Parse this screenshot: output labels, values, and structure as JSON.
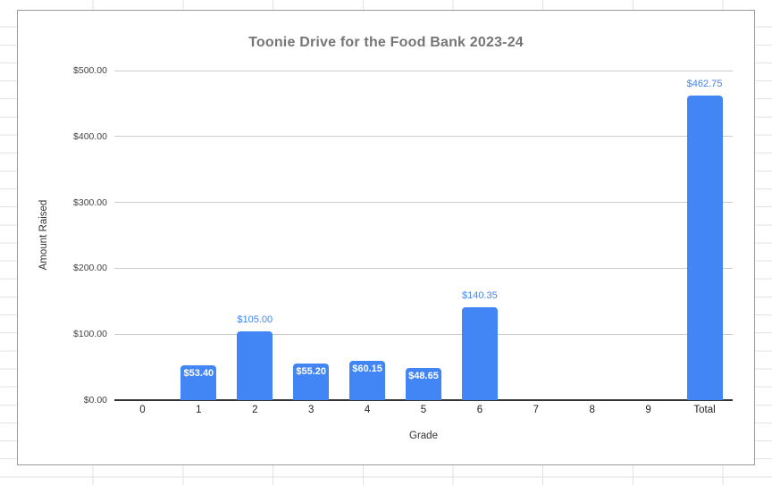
{
  "chart_data": {
    "type": "bar",
    "title": "Toonie Drive for the Food Bank 2023-24",
    "xlabel": "Grade",
    "ylabel": "Amount Raised",
    "categories": [
      "0",
      "1",
      "2",
      "3",
      "4",
      "5",
      "6",
      "7",
      "8",
      "9",
      "Total"
    ],
    "values": [
      null,
      53.4,
      105.0,
      55.2,
      60.15,
      48.65,
      140.35,
      null,
      null,
      null,
      462.75
    ],
    "data_labels": [
      "",
      "$53.40",
      "$105.00",
      "$55.20",
      "$60.15",
      "$48.65",
      "$140.35",
      "",
      "",
      "",
      "$462.75"
    ],
    "y_ticks": [
      0,
      100,
      200,
      300,
      400,
      500
    ],
    "y_tick_labels": [
      "$0.00",
      "$100.00",
      "$200.00",
      "$300.00",
      "$400.00",
      "$500.00"
    ],
    "ylim": [
      0,
      500
    ],
    "grid": true,
    "legend": "none",
    "bar_color": "#4285f4",
    "label_color_inside": "#ffffff",
    "label_color_outside": "#4285f4",
    "title_color": "#757575"
  }
}
